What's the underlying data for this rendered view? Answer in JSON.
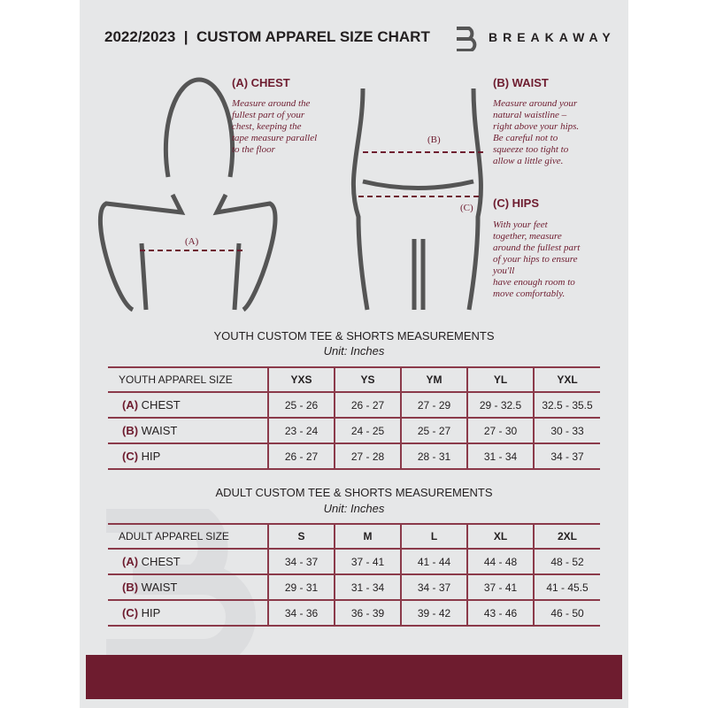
{
  "header": {
    "title": "2022/2023  |  CUSTOM APPAREL SIZE CHART",
    "brand": "BREAKAWAY",
    "logo_letter": "B"
  },
  "colors": {
    "accent": "#6e1c2f",
    "background": "#e6e7e8"
  },
  "measures": {
    "chest": {
      "heading": "(A) CHEST",
      "text": [
        "Measure around the",
        "fullest part of your",
        "chest, keeping the",
        "tape measure parallel",
        "to the floor"
      ],
      "marker": "(A)"
    },
    "waist": {
      "heading": "(B) WAIST",
      "text": [
        "Measure around your",
        "natural waistline –",
        "right above your hips.",
        "Be careful not to",
        "squeeze too tight to",
        "allow a little give."
      ],
      "marker": "(B)"
    },
    "hips": {
      "heading": "(C) HIPS",
      "text": [
        "With your feet",
        "together, measure",
        "around the fullest part",
        "of your hips to ensure",
        "you'll",
        "have enough room to",
        "move comfortably."
      ],
      "marker": "(C)"
    }
  },
  "youth": {
    "title": "YOUTH CUSTOM TEE & SHORTS MEASUREMENTS",
    "unit": "Unit: Inches",
    "headers": [
      "YOUTH APPAREL SIZE",
      "YXS",
      "YS",
      "YM",
      "YL",
      "YXL"
    ],
    "rows": [
      {
        "letter": "(A)",
        "label": "CHEST",
        "values": [
          "25 - 26",
          "26 - 27",
          "27 - 29",
          "29 - 32.5",
          "32.5 - 35.5"
        ]
      },
      {
        "letter": "(B)",
        "label": "WAIST",
        "values": [
          "23 - 24",
          "24 - 25",
          "25 - 27",
          "27 - 30",
          "30 - 33"
        ]
      },
      {
        "letter": "(C)",
        "label": "HIP",
        "values": [
          "26 - 27",
          "27 - 28",
          "28 - 31",
          "31 - 34",
          "34 - 37"
        ]
      }
    ]
  },
  "adult": {
    "title": "ADULT CUSTOM TEE & SHORTS MEASUREMENTS",
    "unit": "Unit: Inches",
    "headers": [
      "ADULT APPAREL SIZE",
      "S",
      "M",
      "L",
      "XL",
      "2XL"
    ],
    "rows": [
      {
        "letter": "(A)",
        "label": "CHEST",
        "values": [
          "34 - 37",
          "37 - 41",
          "41 - 44",
          "44 - 48",
          "48 - 52"
        ]
      },
      {
        "letter": "(B)",
        "label": "WAIST",
        "values": [
          "29 - 31",
          "31 - 34",
          "34 - 37",
          "37 - 41",
          "41 - 45.5"
        ]
      },
      {
        "letter": "(C)",
        "label": "HIP",
        "values": [
          "34 - 36",
          "36 - 39",
          "39 - 42",
          "43 - 46",
          "46 - 50"
        ]
      }
    ]
  }
}
